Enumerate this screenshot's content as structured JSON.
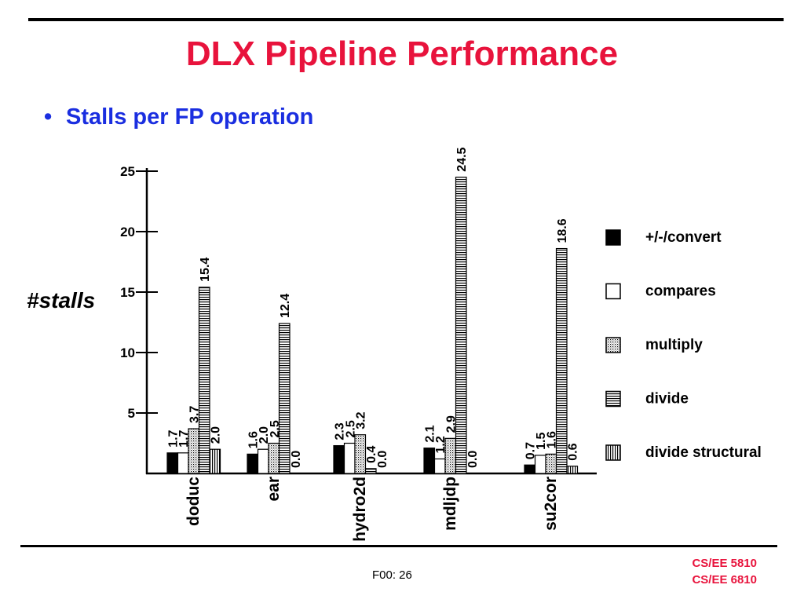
{
  "slide": {
    "title": "DLX Pipeline Performance",
    "bullet": "Stalls per FP operation",
    "bullet_marker": "•",
    "page_label": "F00: 26",
    "course_lines": [
      "CS/EE 5810",
      "CS/EE 6810"
    ],
    "colors": {
      "title": "#e8133c",
      "bullet": "#1a2ee0",
      "footer": "#e8133c"
    }
  },
  "chart_data": {
    "type": "bar",
    "ylabel": "#stalls",
    "ylim": [
      0,
      25
    ],
    "yticks": [
      5,
      10,
      15,
      20,
      25
    ],
    "categories": [
      "doduc",
      "ear",
      "hydro2d",
      "mdljdp",
      "su2cor"
    ],
    "series": [
      {
        "name": "+/-/convert",
        "pattern": "solid",
        "values": [
          1.7,
          1.6,
          2.3,
          2.1,
          0.7
        ]
      },
      {
        "name": "compares",
        "pattern": "empty",
        "values": [
          1.7,
          2.0,
          2.5,
          1.2,
          1.5
        ]
      },
      {
        "name": "multiply",
        "pattern": "dots",
        "values": [
          3.7,
          2.5,
          3.2,
          2.9,
          1.6
        ]
      },
      {
        "name": "divide",
        "pattern": "hlines",
        "values": [
          15.4,
          12.4,
          0.4,
          24.5,
          18.6
        ]
      },
      {
        "name": "divide structural",
        "pattern": "vlines",
        "values": [
          2.0,
          0.0,
          0.0,
          0.0,
          0.6
        ]
      }
    ],
    "legend_position": "right"
  }
}
